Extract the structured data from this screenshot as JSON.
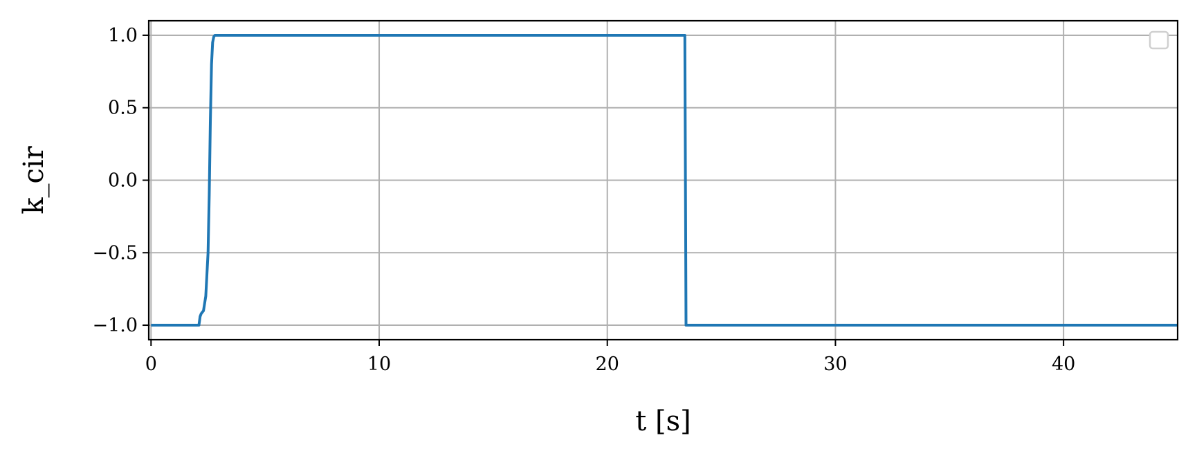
{
  "chart_data": {
    "type": "line",
    "xlabel": "t [s]",
    "ylabel": "k_cir",
    "xlim": [
      -0.1,
      45
    ],
    "ylim": [
      -1.1,
      1.1
    ],
    "x_ticks": [
      0,
      10,
      20,
      30,
      40
    ],
    "x_tick_labels": [
      "0",
      "10",
      "20",
      "30",
      "40"
    ],
    "y_ticks": [
      1.0,
      0.5,
      0.0,
      -0.5,
      -1.0
    ],
    "y_tick_labels": [
      "1.0",
      "0.5",
      "0.0",
      "−0.5",
      "−1.0"
    ],
    "grid": true,
    "legend": "top-right (empty)",
    "series": [
      {
        "color": "#1f77b4",
        "x": [
          0,
          2.1,
          2.15,
          2.2,
          2.3,
          2.4,
          2.5,
          2.55,
          2.6,
          2.65,
          2.7,
          2.75,
          2.8,
          2.9,
          23.4,
          23.45,
          45
        ],
        "y": [
          -1.0,
          -1.0,
          -0.94,
          -0.92,
          -0.9,
          -0.8,
          -0.5,
          -0.1,
          0.4,
          0.8,
          0.95,
          0.99,
          1.0,
          1.0,
          1.0,
          -1.0,
          -1.0
        ]
      }
    ]
  }
}
